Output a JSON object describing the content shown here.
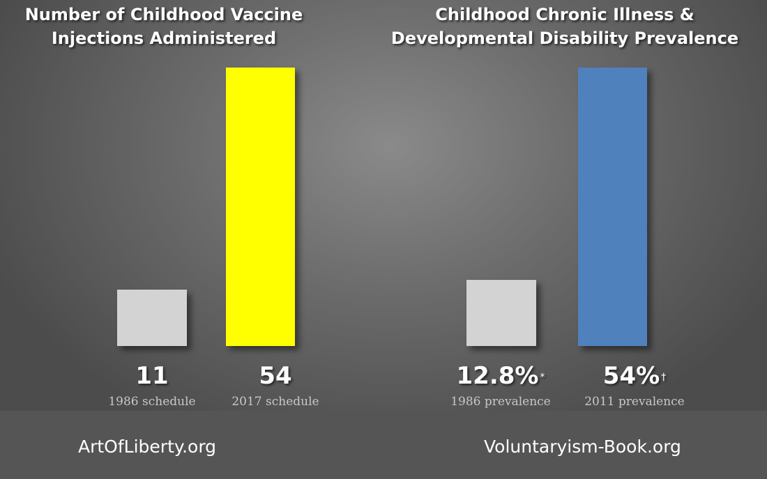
{
  "chart_data": [
    {
      "type": "bar",
      "title": "Number of Childhood Vaccine\nInjections Administered",
      "categories": [
        "1986 schedule",
        "2017 schedule"
      ],
      "values": [
        11,
        54
      ],
      "value_labels": [
        "11",
        "54"
      ],
      "label_marks": [
        "",
        ""
      ],
      "colors": [
        "#d3d3d3",
        "#ffff00"
      ],
      "ylim": [
        0,
        54
      ]
    },
    {
      "type": "bar",
      "title": "Childhood Chronic Illness &\nDevelopmental Disability Prevalence",
      "categories": [
        "1986 prevalence",
        "2011 prevalence"
      ],
      "values": [
        12.8,
        54
      ],
      "value_labels": [
        "12.8%",
        "54%"
      ],
      "label_marks": [
        "*",
        "†"
      ],
      "colors": [
        "#d3d3d3",
        "#4f81bd"
      ],
      "ylim": [
        0,
        54
      ]
    }
  ],
  "footer": {
    "left": "ArtOfLiberty.org",
    "right": "Voluntaryism-Book.org"
  }
}
